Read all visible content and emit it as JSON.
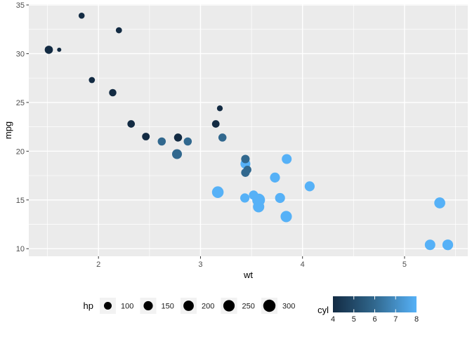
{
  "colors": {
    "panel_bg": "#EBEBEB",
    "grid_major": "#FFFFFF",
    "grid_minor": "#FFFFFF",
    "tick_mark": "#333333",
    "tick_label": "#4D4D4D",
    "axis_title": "#000000",
    "legend_key_bg": "#F2F2F2",
    "legend_point": "#000000",
    "legend_label": "#1A1A1A",
    "page_bg": "#FFFFFF"
  },
  "chart_data": {
    "type": "scatter",
    "title": "",
    "xlabel": "wt",
    "ylabel": "mpg",
    "xlim": [
      1.317,
      5.62
    ],
    "ylim": [
      9.225,
      35.075
    ],
    "x_ticks": [
      2,
      3,
      4,
      5
    ],
    "y_ticks": [
      10,
      15,
      20,
      25,
      30,
      35
    ],
    "x_minor_ticks": [
      1.5,
      2.5,
      3.5,
      4.5,
      5.5
    ],
    "y_minor_ticks": [
      12.5,
      17.5,
      22.5,
      27.5,
      32.5
    ],
    "grid": true,
    "points": [
      {
        "wt": 2.62,
        "mpg": 21.0,
        "hp": 110,
        "cyl": 6
      },
      {
        "wt": 2.875,
        "mpg": 21.0,
        "hp": 110,
        "cyl": 6
      },
      {
        "wt": 2.32,
        "mpg": 22.8,
        "hp": 93,
        "cyl": 4
      },
      {
        "wt": 3.215,
        "mpg": 21.4,
        "hp": 110,
        "cyl": 6
      },
      {
        "wt": 3.44,
        "mpg": 18.7,
        "hp": 175,
        "cyl": 8
      },
      {
        "wt": 3.46,
        "mpg": 18.1,
        "hp": 105,
        "cyl": 6
      },
      {
        "wt": 3.57,
        "mpg": 14.3,
        "hp": 245,
        "cyl": 8
      },
      {
        "wt": 3.19,
        "mpg": 24.4,
        "hp": 62,
        "cyl": 4
      },
      {
        "wt": 3.15,
        "mpg": 22.8,
        "hp": 95,
        "cyl": 4
      },
      {
        "wt": 3.44,
        "mpg": 19.2,
        "hp": 123,
        "cyl": 6
      },
      {
        "wt": 3.44,
        "mpg": 17.8,
        "hp": 123,
        "cyl": 6
      },
      {
        "wt": 4.07,
        "mpg": 16.4,
        "hp": 180,
        "cyl": 8
      },
      {
        "wt": 3.73,
        "mpg": 17.3,
        "hp": 180,
        "cyl": 8
      },
      {
        "wt": 3.78,
        "mpg": 15.2,
        "hp": 180,
        "cyl": 8
      },
      {
        "wt": 5.25,
        "mpg": 10.4,
        "hp": 205,
        "cyl": 8
      },
      {
        "wt": 5.424,
        "mpg": 10.4,
        "hp": 215,
        "cyl": 8
      },
      {
        "wt": 5.345,
        "mpg": 14.7,
        "hp": 230,
        "cyl": 8
      },
      {
        "wt": 2.2,
        "mpg": 32.4,
        "hp": 66,
        "cyl": 4
      },
      {
        "wt": 1.615,
        "mpg": 30.4,
        "hp": 52,
        "cyl": 4
      },
      {
        "wt": 1.835,
        "mpg": 33.9,
        "hp": 65,
        "cyl": 4
      },
      {
        "wt": 2.465,
        "mpg": 21.5,
        "hp": 97,
        "cyl": 4
      },
      {
        "wt": 3.52,
        "mpg": 15.5,
        "hp": 150,
        "cyl": 8
      },
      {
        "wt": 3.435,
        "mpg": 15.2,
        "hp": 150,
        "cyl": 8
      },
      {
        "wt": 3.84,
        "mpg": 13.3,
        "hp": 245,
        "cyl": 8
      },
      {
        "wt": 3.845,
        "mpg": 19.2,
        "hp": 175,
        "cyl": 8
      },
      {
        "wt": 1.935,
        "mpg": 27.3,
        "hp": 66,
        "cyl": 4
      },
      {
        "wt": 2.14,
        "mpg": 26.0,
        "hp": 91,
        "cyl": 4
      },
      {
        "wt": 1.513,
        "mpg": 30.4,
        "hp": 113,
        "cyl": 4
      },
      {
        "wt": 3.17,
        "mpg": 15.8,
        "hp": 264,
        "cyl": 8
      },
      {
        "wt": 2.77,
        "mpg": 19.7,
        "hp": 175,
        "cyl": 6
      },
      {
        "wt": 3.57,
        "mpg": 15.0,
        "hp": 335,
        "cyl": 8
      },
      {
        "wt": 2.78,
        "mpg": 21.4,
        "hp": 109,
        "cyl": 4
      }
    ],
    "color_scale": {
      "field": "cyl",
      "domain": [
        4,
        8
      ],
      "low": "#132B43",
      "mid": "#31688E",
      "high": "#56B1F7"
    },
    "size_scale": {
      "field": "hp",
      "domain": [
        52,
        335
      ],
      "radius_range_px": [
        3,
        9.1
      ]
    },
    "size_legend": {
      "title": "hp",
      "values": [
        100,
        150,
        200,
        250,
        300
      ],
      "labels": [
        "100",
        "150",
        "200",
        "250",
        "300"
      ]
    },
    "color_legend": {
      "title": "cyl",
      "tick_values": [
        4,
        5,
        6,
        7,
        8
      ],
      "tick_labels": [
        "4",
        "5",
        "6",
        "7",
        "8"
      ],
      "marked_ticks": [
        5,
        6,
        7
      ]
    }
  }
}
